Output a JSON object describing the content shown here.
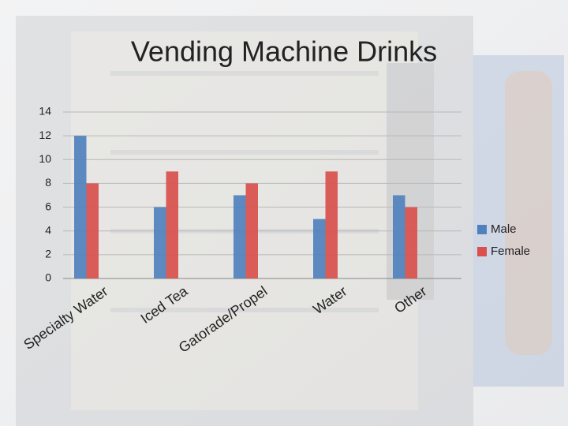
{
  "chart_data": {
    "type": "bar",
    "title": "Vending Machine Drinks",
    "categories": [
      "Specialty Water",
      "Iced Tea",
      "Gatorade/Propel",
      "Water",
      "Other"
    ],
    "series": [
      {
        "name": "Male",
        "color": "#4f81bd",
        "values": [
          12,
          6,
          7,
          5,
          7
        ]
      },
      {
        "name": "Female",
        "color": "#d9504d",
        "values": [
          8,
          9,
          8,
          9,
          6
        ]
      }
    ],
    "ylim": [
      0,
      14
    ],
    "yticks": [
      0,
      2,
      4,
      6,
      8,
      10,
      12,
      14
    ],
    "grid": true,
    "legend": "right"
  }
}
